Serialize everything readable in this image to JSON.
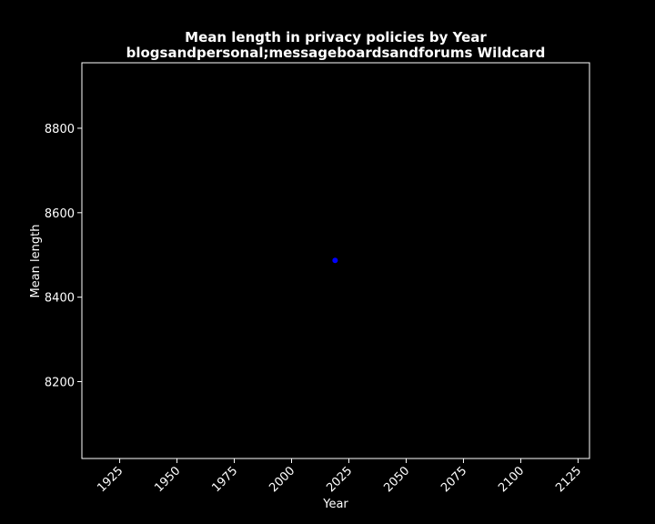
{
  "chart_data": {
    "type": "scatter",
    "title_lines": [
      "Mean length in privacy policies by Year",
      "blogsandpersonal;messageboardsandforums Wildcard"
    ],
    "xlabel": "Year",
    "ylabel": "Mean length",
    "xlim": [
      1908.5,
      2130
    ],
    "ylim": [
      8018,
      8955
    ],
    "x_ticks": [
      1925,
      1950,
      1975,
      2000,
      2025,
      2050,
      2075,
      2100,
      2125
    ],
    "y_ticks": [
      8200,
      8400,
      8600,
      8800
    ],
    "points": [
      {
        "x": 2019,
        "y": 8487
      }
    ],
    "point_color": "#0000ff",
    "background_color": "#000000",
    "axes_color": "#ffffff",
    "text_color": "#ffffff",
    "grid": false
  }
}
